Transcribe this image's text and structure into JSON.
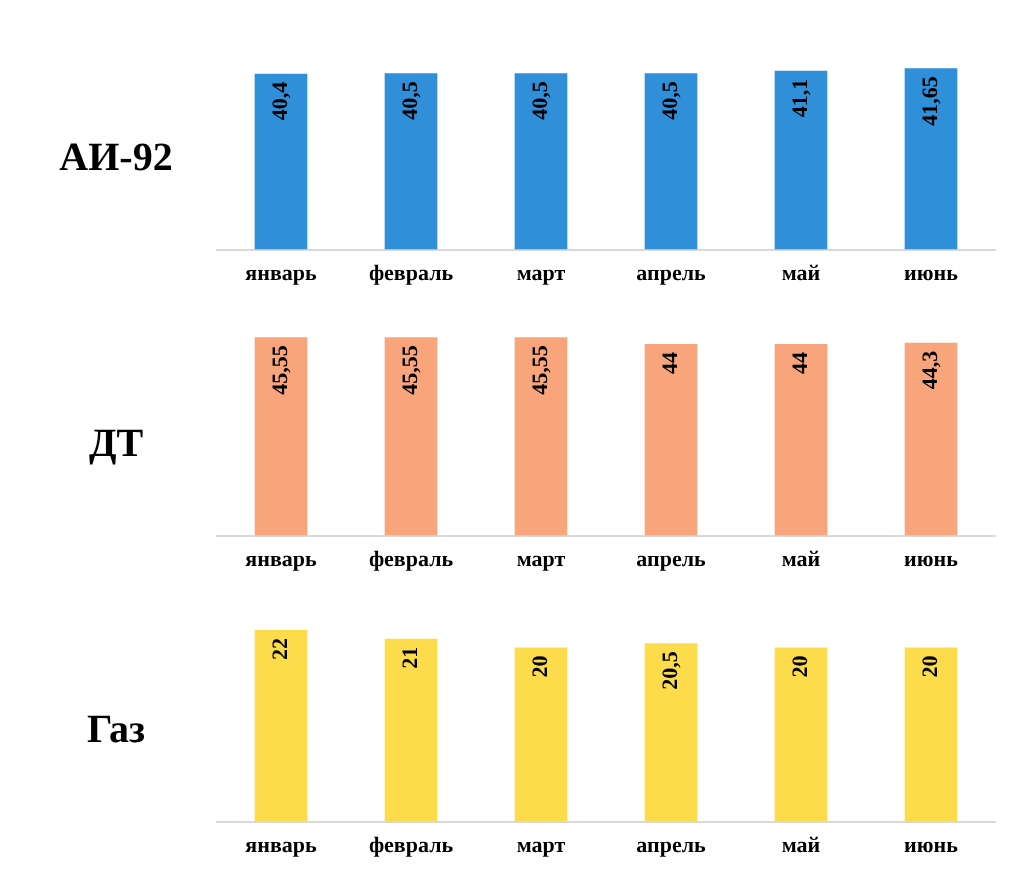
{
  "chart_data": [
    {
      "type": "bar",
      "title": "АИ-92",
      "categories": [
        "январь",
        "февраль",
        "март",
        "апрель",
        "май",
        "июнь"
      ],
      "values": [
        40.4,
        40.5,
        40.5,
        40.5,
        41.1,
        41.65
      ],
      "value_labels": [
        "40,4",
        "40,5",
        "40,5",
        "40,5",
        "41,1",
        "41,65"
      ],
      "color": "#2f8fd8",
      "grid": false,
      "tick_labels": "x"
    },
    {
      "type": "bar",
      "title": "ДТ",
      "categories": [
        "январь",
        "февраль",
        "март",
        "апрель",
        "май",
        "июнь"
      ],
      "values": [
        45.55,
        45.55,
        45.55,
        44,
        44,
        44.3
      ],
      "value_labels": [
        "45,55",
        "45,55",
        "45,55",
        "44",
        "44",
        "44,3"
      ],
      "color": "#f8a57c",
      "grid": false,
      "tick_labels": "x"
    },
    {
      "type": "bar",
      "title": "Газ",
      "categories": [
        "январь",
        "февраль",
        "март",
        "апрель",
        "май",
        "июнь"
      ],
      "values": [
        22,
        21,
        20,
        20.5,
        20,
        20
      ],
      "value_labels": [
        "22",
        "21",
        "20",
        "20,5",
        "20",
        "20"
      ],
      "color": "#fddc4c",
      "grid": false,
      "tick_labels": "x"
    }
  ]
}
